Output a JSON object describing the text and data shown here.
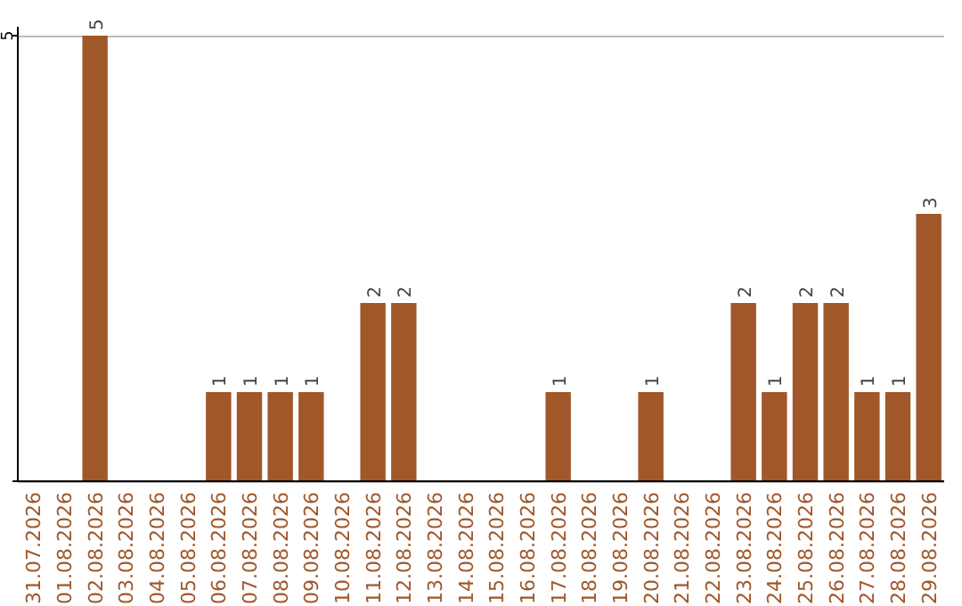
{
  "chart_data": {
    "type": "bar",
    "categories": [
      "31.07.2026",
      "01.08.2026",
      "02.08.2026",
      "03.08.2026",
      "04.08.2026",
      "05.08.2026",
      "06.08.2026",
      "07.08.2026",
      "08.08.2026",
      "09.08.2026",
      "10.08.2026",
      "11.08.2026",
      "12.08.2026",
      "13.08.2026",
      "14.08.2026",
      "15.08.2026",
      "16.08.2026",
      "17.08.2026",
      "18.08.2026",
      "19.08.2026",
      "20.08.2026",
      "21.08.2026",
      "22.08.2026",
      "23.08.2026",
      "24.08.2026",
      "25.08.2026",
      "26.08.2026",
      "27.08.2026",
      "28.08.2026",
      "29.08.2026"
    ],
    "values": [
      null,
      null,
      5,
      null,
      null,
      null,
      1,
      1,
      1,
      1,
      null,
      2,
      2,
      null,
      null,
      null,
      null,
      1,
      null,
      null,
      1,
      null,
      null,
      2,
      1,
      2,
      2,
      1,
      1,
      3
    ],
    "color": "#a0572a",
    "ylim": [
      0,
      5
    ],
    "yticks": [
      {
        "value": 0,
        "label": null
      },
      5
    ],
    "grid": "y",
    "data_labels": true
  }
}
